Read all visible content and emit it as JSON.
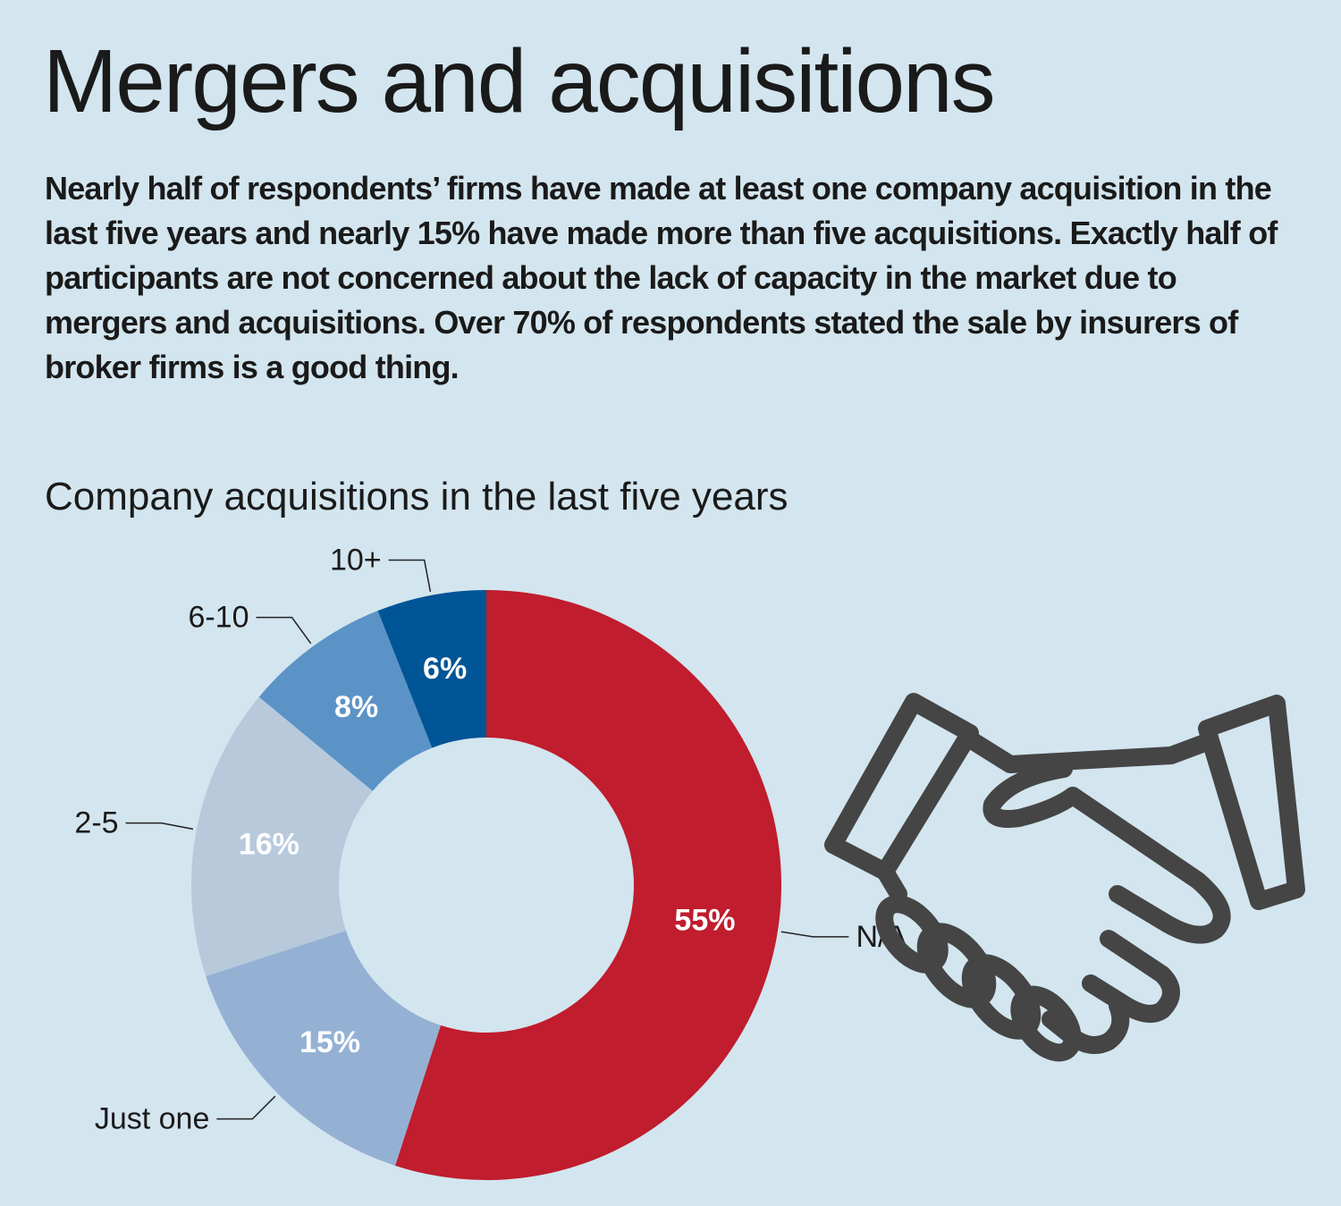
{
  "header": {
    "title": "Mergers and acquisitions",
    "intro": "Nearly half of respondents’ firms have made at least one company acquisition in the last five years and nearly 15% have made more than five acquisitions. Exactly half of participants are not concerned about the lack of capacity in the market due to mergers and acquisitions.  Over 70% of respondents stated the sale by insurers of broker firms is a good thing."
  },
  "chart_data": {
    "type": "pie",
    "title": "Company acquisitions in the last five years",
    "categories": [
      "N/A",
      "Just one",
      "2-5",
      "6-10",
      "10+"
    ],
    "values": [
      55,
      15,
      16,
      8,
      6
    ],
    "labels": [
      "55%",
      "15%",
      "16%",
      "8%",
      "6%"
    ],
    "colors": [
      "#c01d2e",
      "#94b1d4",
      "#b8c9dc",
      "#5b93c6",
      "#005596"
    ],
    "donut": true
  },
  "icon": "handshake-icon"
}
